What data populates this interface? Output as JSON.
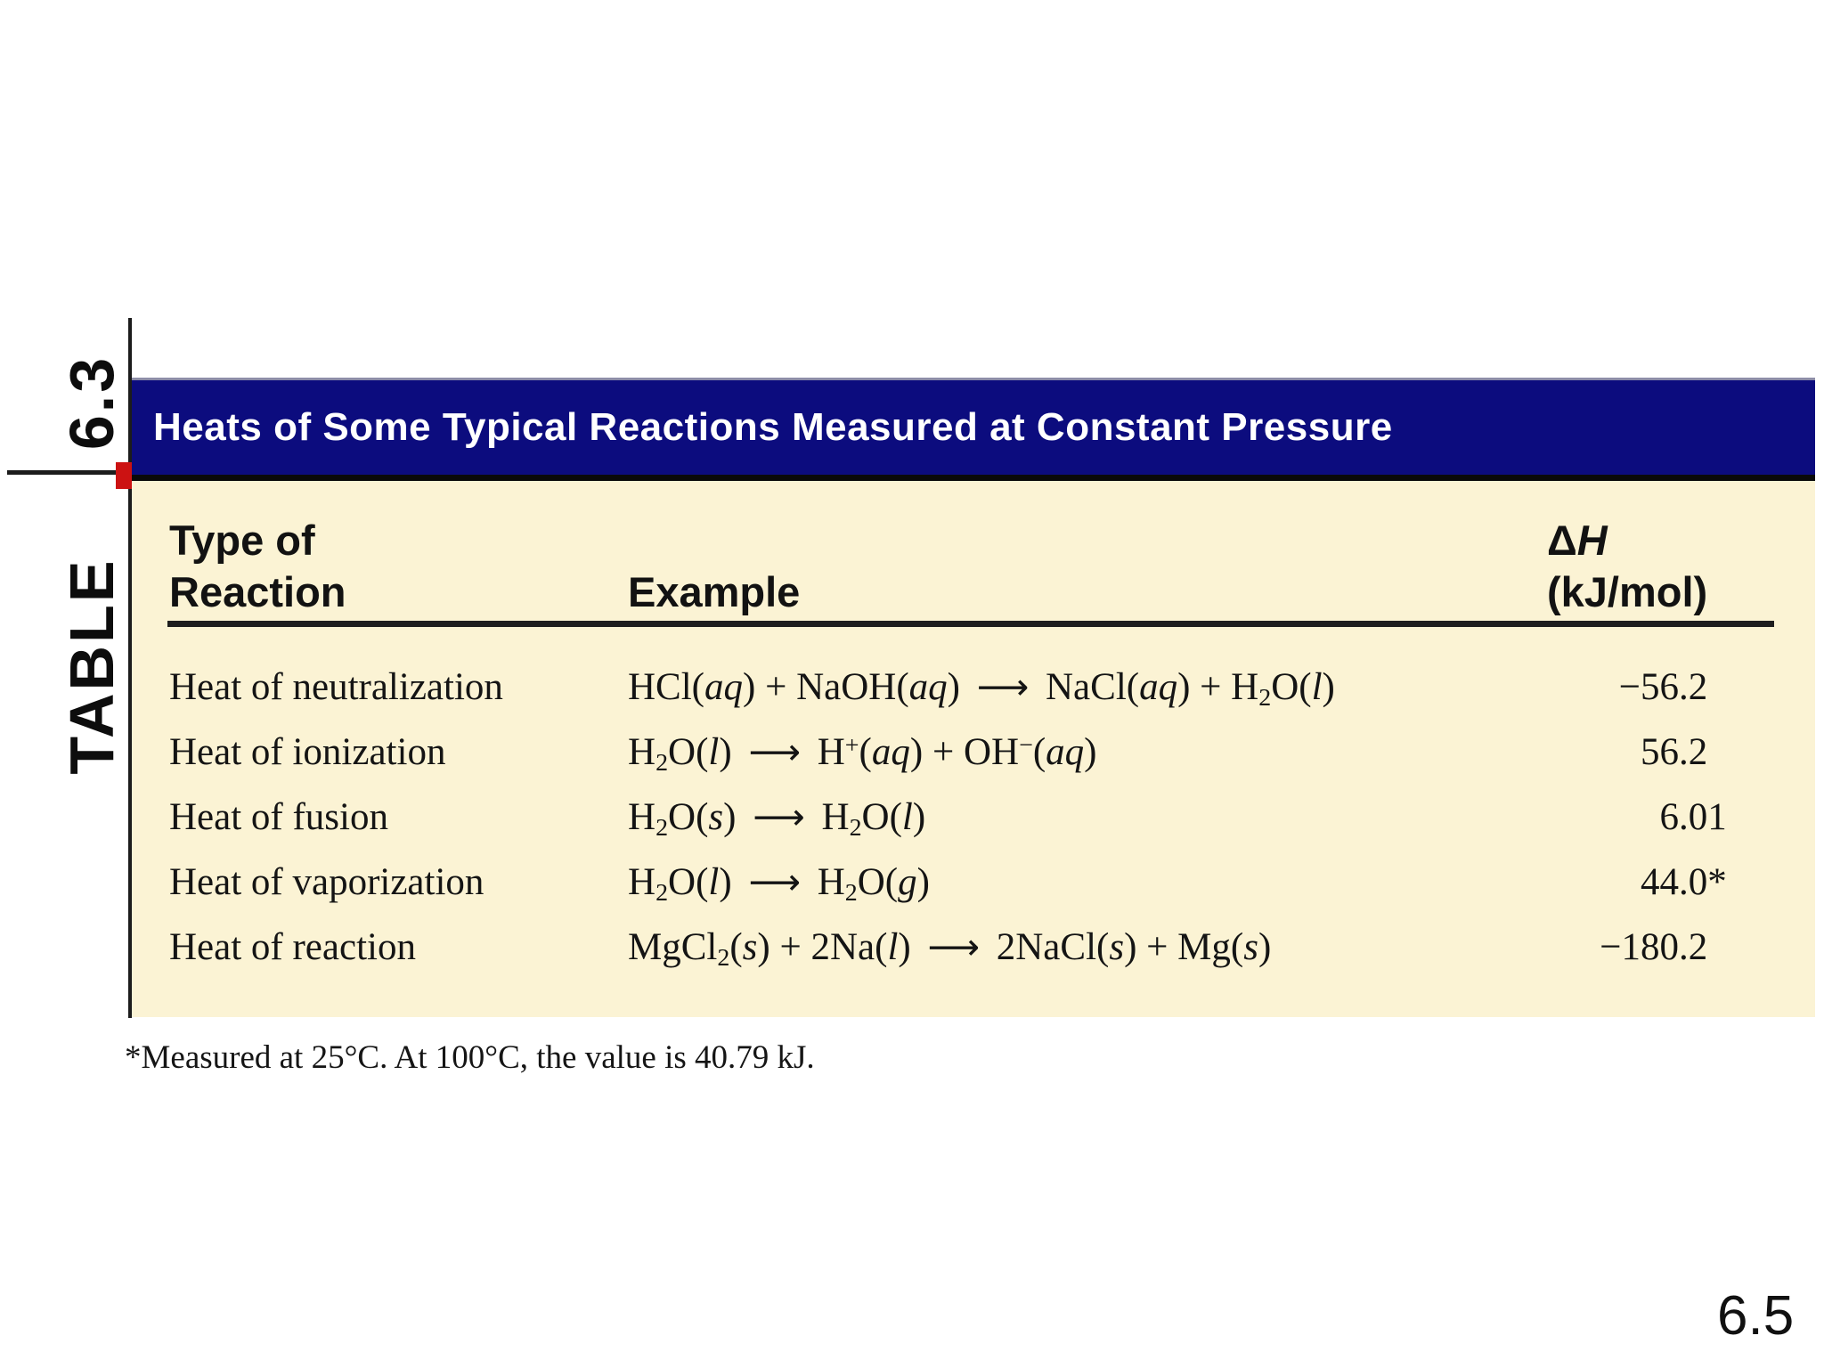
{
  "colors": {
    "navy": "#0c0c7e",
    "cream": "#fbf3d4",
    "red": "#cc1212"
  },
  "table_label": {
    "word": "TABLE",
    "number": "6.3"
  },
  "header": {
    "title": "Heats of Some Typical Reactions Measured at Constant Pressure"
  },
  "columns": {
    "type_line1": "Type of",
    "type_line2": "Reaction",
    "example": "Example",
    "dh_line1_html": "Δ<i>H</i>",
    "dh_line2": "(kJ/mol)"
  },
  "rows": [
    {
      "type": "Heat of neutralization",
      "example_html": "HCl(<i>aq</i>) + NaOH(<i>aq</i>) <span class='arw'>⟶</span> NaCl(<i>aq</i>) + H<sub>2</sub>O(<i>l</i>)",
      "dh": "−56.2",
      "value_int": "−56",
      "value_frac": ".2"
    },
    {
      "type": "Heat of ionization",
      "example_html": "H<sub>2</sub>O(<i>l</i>) <span class='arw'>⟶</span> H<sup>+</sup>(<i>aq</i>) + OH<sup>−</sup>(<i>aq</i>)",
      "dh": "56.2",
      "value_int": "56",
      "value_frac": ".2"
    },
    {
      "type": "Heat of fusion",
      "example_html": "H<sub>2</sub>O(<i>s</i>) <span class='arw'>⟶</span> H<sub>2</sub>O(<i>l</i>)",
      "dh": "6.01",
      "value_int": "6",
      "value_frac": ".01"
    },
    {
      "type": "Heat of vaporization",
      "example_html": "H<sub>2</sub>O(<i>l</i>) <span class='arw'>⟶</span> H<sub>2</sub>O(<i>g</i>)",
      "dh": "44.0*",
      "value_int": "44",
      "value_frac": ".0*"
    },
    {
      "type": "Heat of reaction",
      "example_html": "MgCl<sub>2</sub>(<i>s</i>) + 2Na(<i>l</i>) <span class='arw'>⟶</span> 2NaCl(<i>s</i>) + Mg(<i>s</i>)",
      "dh": "−180.2",
      "value_int": "−180",
      "value_frac": ".2"
    }
  ],
  "footnote": "*Measured at 25°C. At 100°C, the value is 40.79 kJ.",
  "page_number": "6.5"
}
